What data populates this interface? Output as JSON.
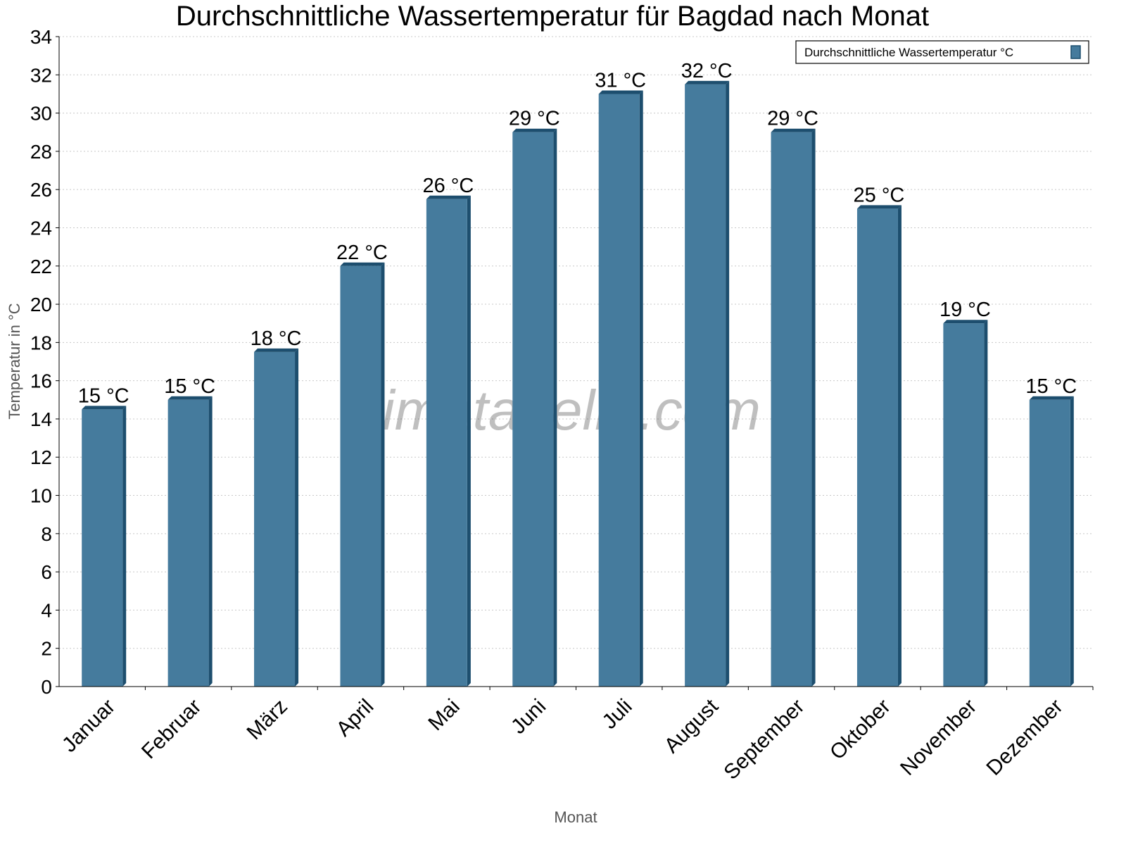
{
  "chart_data": {
    "type": "bar",
    "title": "Durchschnittliche Wassertemperatur für Bagdad nach Monat",
    "xlabel": "Monat",
    "ylabel": "Temperatur in °C",
    "categories": [
      "Januar",
      "Februar",
      "März",
      "April",
      "Mai",
      "Juni",
      "Juli",
      "August",
      "September",
      "Oktober",
      "November",
      "Dezember"
    ],
    "series": [
      {
        "name": "Durchschnittliche Wassertemperatur °C",
        "values": [
          14.5,
          15,
          17.5,
          22,
          25.5,
          29,
          31,
          31.5,
          29,
          25,
          19,
          15
        ],
        "data_labels": [
          "15 °C",
          "15 °C",
          "18 °C",
          "22 °C",
          "26 °C",
          "29 °C",
          "31 °C",
          "32 °C",
          "29 °C",
          "25 °C",
          "19 °C",
          "15 °C"
        ],
        "color": "#457b9d",
        "edge_color": "#1d4e6e"
      }
    ],
    "ylim": [
      0,
      34
    ],
    "yticks": [
      0,
      2,
      4,
      6,
      8,
      10,
      12,
      14,
      16,
      18,
      20,
      22,
      24,
      26,
      28,
      30,
      32,
      34
    ],
    "grid": true,
    "legend_position": "top-right",
    "watermark": "klimatabelle.com"
  }
}
